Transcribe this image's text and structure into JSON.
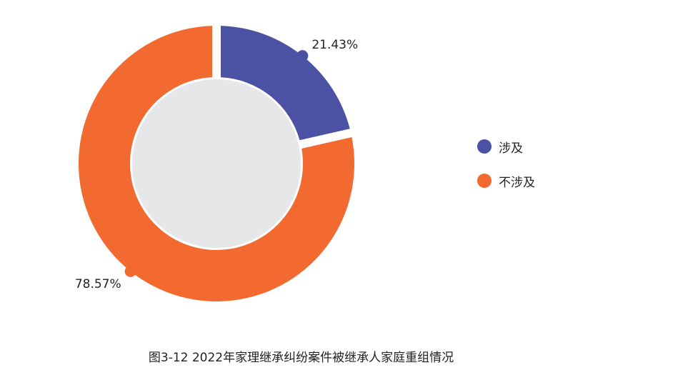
{
  "chart_data": {
    "type": "pie",
    "variant": "donut",
    "title": "图3-12  2022年家理继承纠纷案件被继承人家庭重组情况",
    "categories": [
      "涉及",
      "不涉及"
    ],
    "values": [
      21.43,
      78.57
    ],
    "labels": [
      "21.43%",
      "78.57%"
    ],
    "colors": [
      "#4c52a3",
      "#f26a30"
    ],
    "center_color": "#e6e7e8",
    "legend_position": "right"
  }
}
